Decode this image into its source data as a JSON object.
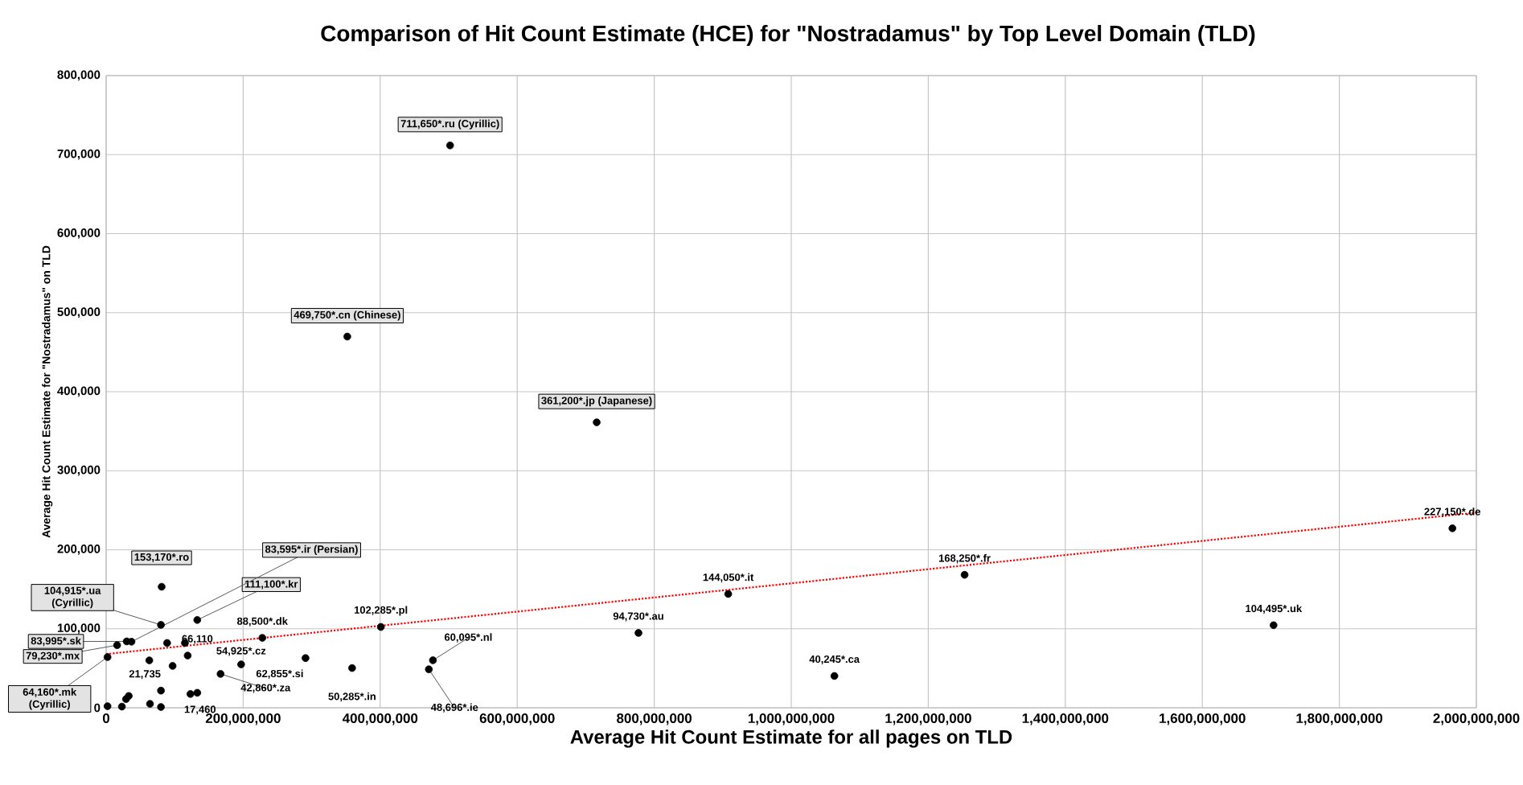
{
  "chart_data": {
    "type": "scatter",
    "title": "Comparison of  Hit Count Estimate (HCE) for \"Nostradamus\" by Top Level Domain (TLD)",
    "xlabel": "Average Hit Count Estimate for all pages on TLD",
    "ylabel": "Average Hit Count Estimate for \"Nostradamus\" on TLD",
    "xlim": [
      0,
      2000000000
    ],
    "ylim": [
      0,
      800000
    ],
    "xticks": [
      0,
      {
        "value": 200000000,
        "label": "200,000,000"
      },
      {
        "value": 400000000,
        "label": "400,000,000"
      },
      {
        "value": 600000000,
        "label": "600,000,000"
      },
      {
        "value": 800000000,
        "label": "800,000,000"
      },
      {
        "value": 1000000000,
        "label": "1,000,000,000"
      },
      {
        "value": 1200000000,
        "label": "1,200,000,000"
      },
      {
        "value": 1400000000,
        "label": "1,400,000,000"
      },
      {
        "value": 1600000000,
        "label": "1,600,000,000"
      },
      {
        "value": 1800000000,
        "label": "1,800,000,000"
      },
      {
        "value": 2000000000,
        "label": "2,000,000,000"
      }
    ],
    "yticks": [
      0,
      {
        "value": 100000,
        "label": "100,000"
      },
      {
        "value": 200000,
        "label": "200,000"
      },
      {
        "value": 300000,
        "label": "300,000"
      },
      {
        "value": 400000,
        "label": "400,000"
      },
      {
        "value": 500000,
        "label": "500,000"
      },
      {
        "value": 600000,
        "label": "600,000"
      },
      {
        "value": 700000,
        "label": "700,000"
      },
      {
        "value": 800000,
        "label": "800,000"
      }
    ],
    "grid": true,
    "series": [
      {
        "type": "scatter",
        "color": "#000000",
        "marker": "circle",
        "x": [
          502000000,
          352000000,
          716000000,
          1965000000,
          1253000000,
          908000000,
          1704000000,
          1063000000,
          777000000,
          401000000,
          477000000,
          471000000,
          359000000,
          291000000,
          228000000,
          197000000,
          81000000,
          133000000,
          80000000,
          37000000,
          30000000,
          16000000,
          2000000,
          167000000,
          119000000,
          123000000,
          80000000,
          23000000,
          29000000,
          33000000,
          64000000,
          80000000,
          97000000,
          63000000,
          133000000,
          115000000,
          89000000,
          2000000
        ],
        "values": [
          711650,
          469750,
          361200,
          227150,
          168250,
          144050,
          104495,
          40245,
          94730,
          102285,
          60095,
          48696,
          50285,
          62855,
          88500,
          54925,
          153170,
          111100,
          104915,
          83595,
          83995,
          79230,
          64160,
          42860,
          66110,
          17460,
          21735,
          1500,
          11000,
          15000,
          5000,
          1000,
          53000,
          60000,
          19000,
          82000,
          82000,
          2000
        ]
      },
      {
        "type": "line",
        "color": "#ff0000",
        "line_style": "dotted",
        "marker": "none",
        "x": [
          0,
          2000000000
        ],
        "values": [
          68000,
          247000
        ]
      }
    ],
    "annotations": [
      {
        "text": "711,650*.ru (Cyrillic)",
        "x": 502000000,
        "y": 711650
      },
      {
        "text": "469,750*.cn (Chinese)",
        "x": 352000000,
        "y": 469750
      },
      {
        "text": "361,200*.jp (Japanese)",
        "x": 716000000,
        "y": 361200
      },
      {
        "text": "227,150*.de",
        "x": 1965000000,
        "y": 227150
      },
      {
        "text": "168,250*.fr",
        "x": 1253000000,
        "y": 168250
      },
      {
        "text": "144,050*.it",
        "x": 908000000,
        "y": 144050
      },
      {
        "text": "104,495*.uk",
        "x": 1704000000,
        "y": 104495
      },
      {
        "text": "40,245*.ca",
        "x": 1063000000,
        "y": 40245
      },
      {
        "text": "94,730*.au",
        "x": 777000000,
        "y": 94730
      },
      {
        "text": "102,285*.pl",
        "x": 401000000,
        "y": 102285
      },
      {
        "text": "60,095*.nl",
        "x": 477000000,
        "y": 60095
      },
      {
        "text": "48,696*.ie",
        "x": 471000000,
        "y": 48696
      },
      {
        "text": "50,285*.in",
        "x": 359000000,
        "y": 50285
      },
      {
        "text": "62,855*.si",
        "x": 291000000,
        "y": 62855
      },
      {
        "text": "88,500*.dk",
        "x": 228000000,
        "y": 88500
      },
      {
        "text": "54,925*.cz",
        "x": 197000000,
        "y": 54925
      },
      {
        "text": "153,170*.ro",
        "x": 81000000,
        "y": 153170
      },
      {
        "text": "111,100*.kr",
        "x": 133000000,
        "y": 111100
      },
      {
        "text": "104,915*.ua (Cyrillic)",
        "x": 80000000,
        "y": 104915
      },
      {
        "text": "83,595*.ir (Persian)",
        "x": 37000000,
        "y": 83595
      },
      {
        "text": "83,995*.sk",
        "x": 30000000,
        "y": 83995
      },
      {
        "text": "79,230*.mx",
        "x": 16000000,
        "y": 79230
      },
      {
        "text": "64,160*.mk (Cyrillic)",
        "x": 2000000,
        "y": 64160
      },
      {
        "text": "42,860*.za",
        "x": 167000000,
        "y": 42860
      },
      {
        "text": "66,110",
        "x": 119000000,
        "y": 66110
      },
      {
        "text": "17,460",
        "x": 123000000,
        "y": 17460
      },
      {
        "text": "21,735",
        "x": 80000000,
        "y": 21735
      }
    ]
  }
}
